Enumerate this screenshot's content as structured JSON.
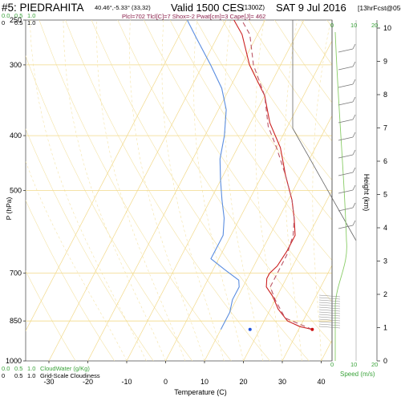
{
  "header": {
    "station": "#5: PIEDRAHITA",
    "coords": "40.46°,-5.33° (33,32)",
    "valid": "Valid 1500 CES",
    "utc": "(1300Z)",
    "date": "SAT 9 Jul 2016",
    "forecast": "[13hrFcst@0506z]",
    "params": "Plcl=702 Tlcl[C]=7 Shox=-2 Pwat[cm]=3 Cape[J]= 462"
  },
  "chart_data": {
    "type": "line",
    "subtype": "skew-T log-p sounding",
    "xlabel": "Temperature (C)",
    "ylabel": "P (hPa)",
    "ylabel_right": "Height (km)",
    "x_ticks": [
      -30,
      -20,
      -10,
      0,
      10,
      20,
      30,
      40
    ],
    "p_ticks": [
      250,
      300,
      400,
      500,
      700,
      850,
      1000
    ],
    "p_range": [
      250,
      1000
    ],
    "height_ticks": [
      0,
      1,
      2,
      3,
      4,
      5,
      6,
      7,
      8,
      9,
      10
    ],
    "skew_ticks": [
      -40,
      -30,
      -20,
      -10,
      0,
      10,
      20,
      30,
      40,
      50,
      60
    ],
    "top_scale_labels": [
      "0.0",
      "0.5",
      "1.0"
    ],
    "top_scale_labels_b": [
      "0",
      "0.5",
      "1.0"
    ],
    "bottom_scale_labels_a": [
      "0.0",
      "0.5",
      "1.0"
    ],
    "bottom_scale_labels_b": [
      "0",
      "0.5",
      "1.0"
    ],
    "cloudwater_label": "CloudWater (g/Kg)",
    "cloudiness_label": "Grid-Scale Cloudiness",
    "speed_label": "Speed (m/s)",
    "speed_ticks": [
      "0",
      "10",
      "20"
    ],
    "series": [
      {
        "name": "Temperature",
        "color": "#cc2222",
        "points": [
          [
            33.5,
            880
          ],
          [
            30,
            870
          ],
          [
            26,
            850
          ],
          [
            22,
            810
          ],
          [
            19,
            770
          ],
          [
            16,
            740
          ],
          [
            15,
            715
          ],
          [
            15,
            700
          ],
          [
            16,
            680
          ],
          [
            16.5,
            640
          ],
          [
            16.5,
            600
          ],
          [
            14,
            560
          ],
          [
            11,
            520
          ],
          [
            6,
            470
          ],
          [
            1,
            420
          ],
          [
            -5,
            380
          ],
          [
            -10,
            340
          ],
          [
            -18,
            300
          ],
          [
            -24,
            265
          ],
          [
            -28,
            250
          ]
        ]
      },
      {
        "name": "Parcel",
        "color": "#bb5566",
        "dashed": true,
        "points": [
          [
            33.5,
            880
          ],
          [
            25,
            840
          ],
          [
            20,
            780
          ],
          [
            17,
            740
          ],
          [
            17,
            700
          ],
          [
            17,
            650
          ],
          [
            16,
            600
          ],
          [
            14,
            560
          ],
          [
            11,
            520
          ],
          [
            6,
            470
          ],
          [
            0,
            420
          ],
          [
            -5,
            385
          ],
          [
            -10,
            340
          ],
          [
            -17,
            300
          ],
          [
            -22,
            265
          ],
          [
            -26,
            250
          ]
        ]
      },
      {
        "name": "Dewpoint",
        "color": "#5a8de0",
        "points": [
          [
            10,
            880
          ],
          [
            10,
            860
          ],
          [
            10,
            820
          ],
          [
            9,
            780
          ],
          [
            9,
            740
          ],
          [
            8,
            720
          ],
          [
            3,
            690
          ],
          [
            -2,
            660
          ],
          [
            -2,
            640
          ],
          [
            -2,
            600
          ],
          [
            -4,
            560
          ],
          [
            -7,
            520
          ],
          [
            -10,
            480
          ],
          [
            -13,
            440
          ],
          [
            -15,
            400
          ],
          [
            -18,
            360
          ],
          [
            -22,
            330
          ],
          [
            -28,
            300
          ],
          [
            -35,
            270
          ],
          [
            -40,
            250
          ]
        ]
      }
    ],
    "surface_dewpoint": [
      17.5,
      880
    ],
    "surface_temp": [
      33.5,
      880
    ]
  }
}
